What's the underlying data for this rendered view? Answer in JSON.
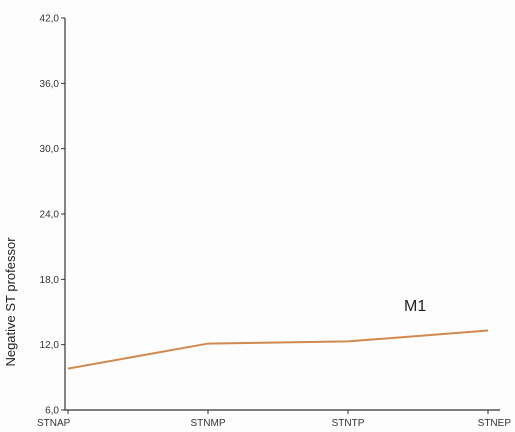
{
  "chart_data": {
    "type": "line",
    "categories": [
      "STNAP",
      "STNMP",
      "STNTP",
      "STNEP"
    ],
    "series": [
      {
        "name": "M1",
        "values": [
          9.8,
          12.1,
          12.3,
          13.3
        ],
        "color": "#d08a4e"
      }
    ],
    "ylabel": "Negative ST professor",
    "xlabel": "",
    "title": "",
    "ylim": [
      6.0,
      42.0
    ],
    "yticks": [
      "6,0",
      "12,0",
      "18,0",
      "24,0",
      "30,0",
      "36,0",
      "42,0"
    ],
    "ytick_values": [
      6,
      12,
      18,
      24,
      30,
      36,
      42
    ],
    "grid": false
  }
}
